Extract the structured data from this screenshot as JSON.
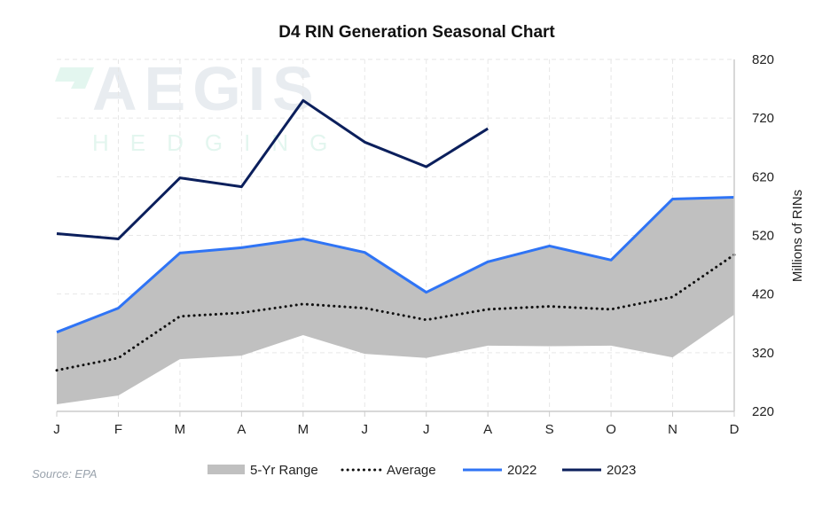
{
  "chart_data": {
    "type": "line",
    "title": "D4 RIN Generation Seasonal Chart",
    "ylabel": "Millions of RINs",
    "ylim": [
      220,
      820
    ],
    "yticks": [
      220,
      320,
      420,
      520,
      620,
      720,
      820
    ],
    "y_axis_side": "right",
    "grid": true,
    "legend_placement": "bottom",
    "categories": [
      "J",
      "F",
      "M",
      "A",
      "M",
      "J",
      "J",
      "A",
      "S",
      "O",
      "N",
      "D"
    ],
    "range": {
      "name": "5-Yr Range",
      "color": "#c0c0c0",
      "low": [
        232,
        247,
        309,
        315,
        350,
        318,
        311,
        332,
        331,
        332,
        312,
        385
      ],
      "high": [
        355,
        396,
        490,
        499,
        514,
        491,
        423,
        475,
        502,
        478,
        582,
        585
      ]
    },
    "series": [
      {
        "name": "Average",
        "color": "#111111",
        "style": "dotted",
        "values": [
          290,
          311,
          382,
          388,
          403,
          396,
          376,
          394,
          399,
          394,
          415,
          487
        ]
      },
      {
        "name": "2022",
        "color": "#2f74f5",
        "style": "solid",
        "values": [
          355,
          396,
          490,
          499,
          514,
          491,
          423,
          475,
          502,
          478,
          582,
          585
        ]
      },
      {
        "name": "2023",
        "color": "#0b1f5c",
        "style": "solid",
        "values": [
          523,
          514,
          618,
          603,
          750,
          679,
          637,
          702,
          null,
          null,
          null,
          null
        ]
      }
    ],
    "source": "Source: EPA"
  },
  "watermark": {
    "line1": "AEGIS",
    "line2": "HEDGING"
  }
}
